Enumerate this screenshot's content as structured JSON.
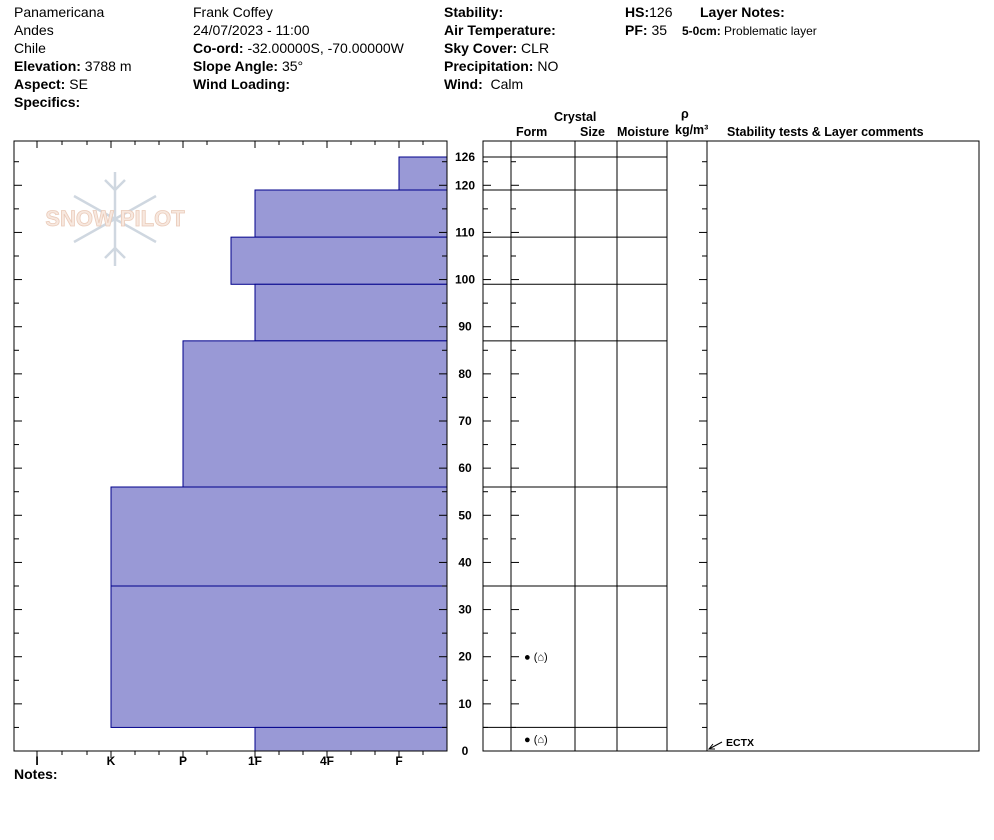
{
  "header": {
    "col1": [
      "Panamericana",
      "Andes",
      "Chile"
    ],
    "elevation_label": "Elevation:",
    "elevation": "3788 m",
    "aspect_label": "Aspect:",
    "aspect": "SE",
    "specifics_label": "Specifics:",
    "observer": "Frank Coffey",
    "datetime": "24/07/2023 - 11:00",
    "coord_label": "Co-ord:",
    "coord": "-32.00000S, -70.00000W",
    "slope_label": "Slope Angle:",
    "slope": "35°",
    "wind_loading_label": "Wind Loading:",
    "stability_label": "Stability:",
    "air_temp_label": "Air Temperature:",
    "sky_label": "Sky Cover:",
    "sky": "CLR",
    "precip_label": "Precipitation:",
    "precip": "NO",
    "wind_label": "Wind:",
    "wind": "Calm",
    "hs_label": "HS:",
    "hs": "126",
    "pf_label": "PF:",
    "pf": "35",
    "layer_notes_label": "Layer Notes:",
    "layer_note_range": "5-0cm:",
    "layer_note_text": "Problematic layer"
  },
  "notes_label": "Notes:",
  "watermark": "SNOW PILOT",
  "columns": {
    "crystal": "Crystal",
    "form": "Form",
    "size": "Size",
    "moisture": "Moisture",
    "rho": "ρ",
    "density_unit": "kg/m³",
    "stability": "Stability tests & Layer comments"
  },
  "chart_data": {
    "type": "bar",
    "title": "",
    "xlabel": "",
    "ylabel": "",
    "x_categories": [
      "I",
      "K",
      "P",
      "1F",
      "4F",
      "F"
    ],
    "hardness_scale": [
      "F",
      "4F",
      "1F",
      "P",
      "K",
      "I"
    ],
    "ylim": [
      0,
      126
    ],
    "yticks": [
      0,
      10,
      20,
      30,
      40,
      50,
      60,
      70,
      80,
      90,
      100,
      110,
      120,
      126
    ],
    "layers": [
      {
        "top": 126,
        "bottom": 119,
        "hardness": "F+"
      },
      {
        "top": 119,
        "bottom": 109,
        "hardness": "1F"
      },
      {
        "top": 109,
        "bottom": 99,
        "hardness": "1F-"
      },
      {
        "top": 99,
        "bottom": 87,
        "hardness": "1F"
      },
      {
        "top": 87,
        "bottom": 56,
        "hardness": "P"
      },
      {
        "top": 56,
        "bottom": 35,
        "hardness": "K"
      },
      {
        "top": 35,
        "bottom": 5,
        "hardness": "K"
      },
      {
        "top": 5,
        "bottom": 0,
        "hardness": "1F"
      }
    ],
    "layer_boundaries": [
      126,
      119,
      109,
      99,
      87,
      56,
      35,
      5,
      0
    ],
    "crystal_symbols": [
      {
        "depth": 20,
        "symbol": "● (⌂)"
      },
      {
        "depth": 2.5,
        "symbol": "● (⌂)"
      }
    ],
    "stability_tests": [
      {
        "depth": 0,
        "label": "ECTX"
      }
    ],
    "colors": {
      "fill": "#9999d6",
      "edge": "#00008b"
    }
  }
}
